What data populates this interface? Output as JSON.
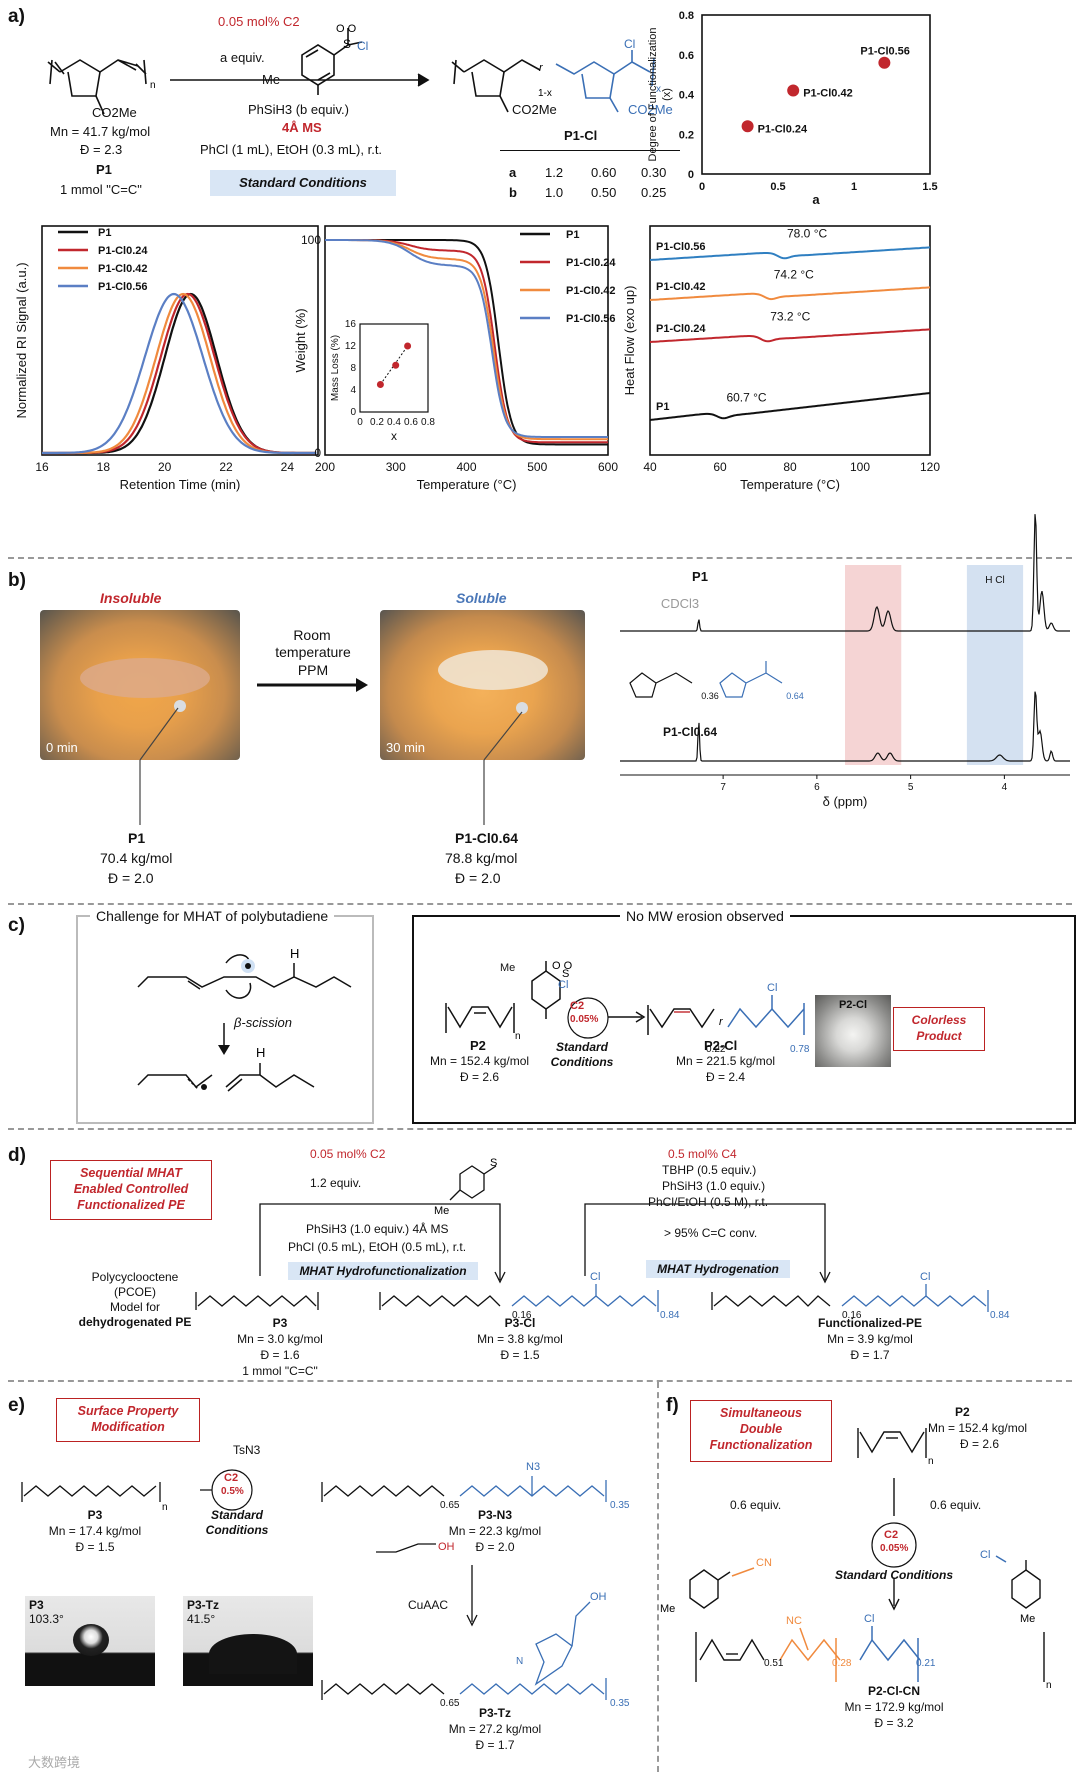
{
  "panel_labels": {
    "a": "a)",
    "b": "b)",
    "c": "c)",
    "d": "d)",
    "e": "e)",
    "f": "f)"
  },
  "panel_a": {
    "scheme": {
      "catalyst_line": "0.05 mol% C2",
      "reagent_equiv": "a equiv.",
      "silane": "PhSiH3 (b equiv.)",
      "ms": "4Å MS",
      "solvent": "PhCl (1 mL), EtOH (0.3 mL), r.t.",
      "standard_conditions": "Standard Conditions",
      "monomer_mn": "Mn = 41.7 kg/mol",
      "monomer_d": "Đ = 2.3",
      "monomer_name": "P1",
      "monomer_amount": "1 mmol  \"C=C\"",
      "product_name": "P1-Cl",
      "me_label": "Me",
      "so2cl_label": "Cl",
      "co2me": "CO2Me",
      "table_rows": [
        [
          "a",
          "1.2",
          "0.60",
          "0.30"
        ],
        [
          "b",
          "1.0",
          "0.50",
          "0.25"
        ]
      ]
    },
    "dof_chart": {
      "chart_data": {
        "type": "scatter",
        "ylabel": "Degree of Functionalization (x)",
        "xlabel": "a",
        "xlim": [
          0,
          1.5
        ],
        "ylim": [
          0,
          0.8
        ],
        "x_ticks": [
          "0",
          "0.5",
          "1",
          "1.5"
        ],
        "y_ticks": [
          "0",
          "0.2",
          "0.4",
          "0.6",
          "0.8"
        ],
        "points": [
          {
            "x": 0.3,
            "y": 0.24,
            "label": "P1-Cl0.24"
          },
          {
            "x": 0.6,
            "y": 0.42,
            "label": "P1-Cl0.42"
          },
          {
            "x": 1.2,
            "y": 0.56,
            "label": "P1-Cl0.56"
          }
        ],
        "color": "#c1272d"
      }
    },
    "gpc_chart": {
      "chart_data": {
        "type": "line",
        "xlabel": "Retention Time (min)",
        "ylabel": "Normalized RI Signal (a.u.)",
        "xlim": [
          16,
          25
        ],
        "x_ticks": [
          "16",
          "18",
          "20",
          "22",
          "24"
        ],
        "series": [
          {
            "name": "P1",
            "color": "#111111",
            "peak": 20.85,
            "width": 1.25
          },
          {
            "name": "P1-Cl0.24",
            "color": "#c1272d",
            "peak": 20.75,
            "width": 1.3
          },
          {
            "name": "P1-Cl0.42",
            "color": "#f08a3e",
            "peak": 20.6,
            "width": 1.3
          },
          {
            "name": "P1-Cl0.56",
            "color": "#5b7fc4",
            "peak": 20.3,
            "width": 1.4
          }
        ]
      }
    },
    "tga_chart": {
      "chart_data": {
        "type": "line",
        "xlabel": "Temperature (°C)",
        "ylabel": "Weight (%)",
        "xlim": [
          200,
          600
        ],
        "ylim": [
          0,
          100
        ],
        "x_ticks": [
          "200",
          "300",
          "400",
          "500",
          "600"
        ],
        "y_ticks": [
          "0",
          "100"
        ],
        "series": [
          {
            "name": "P1",
            "color": "#111111",
            "plateau": 100,
            "step_end": 100,
            "onset": 445,
            "residue": 4
          },
          {
            "name": "P1-Cl0.24",
            "color": "#c1272d",
            "plateau": 100,
            "step_end": 95,
            "onset": 440,
            "residue": 5
          },
          {
            "name": "P1-Cl0.42",
            "color": "#f08a3e",
            "plateau": 100,
            "step_end": 91,
            "onset": 438,
            "residue": 6.5
          },
          {
            "name": "P1-Cl0.56",
            "color": "#5b7fc4",
            "plateau": 100,
            "step_end": 88,
            "onset": 436,
            "residue": 7.5
          }
        ],
        "inset": {
          "xlabel": "x",
          "ylabel": "Mass Loss (%)",
          "xlim": [
            0,
            0.8
          ],
          "ylim": [
            0,
            16
          ],
          "x_ticks": [
            "0",
            "0.2",
            "0.4",
            "0.6",
            "0.8"
          ],
          "y_ticks": [
            "0",
            "4",
            "8",
            "12",
            "16"
          ],
          "points": [
            {
              "x": 0.24,
              "y": 5
            },
            {
              "x": 0.42,
              "y": 8.5
            },
            {
              "x": 0.56,
              "y": 12
            }
          ]
        }
      }
    },
    "dsc_chart": {
      "chart_data": {
        "type": "line",
        "xlabel": "Temperature (°C)",
        "ylabel": "Heat Flow (exo up)",
        "xlim": [
          40,
          120
        ],
        "x_ticks": [
          "40",
          "60",
          "80",
          "100",
          "120"
        ],
        "series": [
          {
            "name": "P1-Cl0.56",
            "color": "#2f7fc1",
            "tg": 78.0,
            "tg_label": "78.0 °C"
          },
          {
            "name": "P1-Cl0.42",
            "color": "#f08a3e",
            "tg": 74.2,
            "tg_label": "74.2 °C"
          },
          {
            "name": "P1-Cl0.24",
            "color": "#c1272d",
            "tg": 73.2,
            "tg_label": "73.2 °C"
          },
          {
            "name": "P1",
            "color": "#111111",
            "tg": 60.7,
            "tg_label": "60.7 °C"
          }
        ]
      }
    }
  },
  "panel_b": {
    "insoluble": "Insoluble",
    "soluble": "Soluble",
    "arrow_text": [
      "Room",
      "temperature",
      "PPM"
    ],
    "time0": "0 min",
    "time30": "30 min",
    "left_name": "P1",
    "left_mn": "70.4 kg/mol",
    "left_d": "Đ = 2.0",
    "right_name": "P1-Cl0.64",
    "right_mn": "78.8 kg/mol",
    "right_d": "Đ = 2.0",
    "nmr": {
      "top_label": "P1",
      "solvent": "CDCl3",
      "bottom_label": "P1-Cl0.64",
      "frac_a": "0.36",
      "frac_b": "0.64",
      "xlabel": "δ (ppm)",
      "x_ticks": [
        "7",
        "6",
        "5",
        "4"
      ],
      "hcl_label": "H  Cl"
    }
  },
  "panel_c": {
    "challenge_title": "Challenge for MHAT of polybutadiene",
    "beta": "β-scission",
    "h_label": "H",
    "no_mw_title": "No MW erosion observed",
    "p2_name": "P2",
    "p2_mn": "Mn = 152.4 kg/mol",
    "p2_d": "Đ = 2.6",
    "c2": "C2",
    "c2_loading": "0.05%",
    "std": [
      "Standard",
      "Conditions"
    ],
    "prod_name": "P2-Cl",
    "prod_mn": "Mn = 221.5 kg/mol",
    "prod_d": "Đ = 2.4",
    "frac1": "0.22",
    "frac2": "0.78",
    "photo_label": "P2-Cl",
    "colorless": [
      "Colorless",
      "Product"
    ]
  },
  "panel_d": {
    "box_title": [
      "Sequential MHAT",
      "Enabled Controlled",
      "Functionalized PE"
    ],
    "left_cat": "0.05 mol% C2",
    "left_equiv": "1.2 equiv.",
    "left_silane": "PhSiH3 (1.0 equiv.) 4Å MS",
    "left_solvent": "PhCl (0.5 mL), EtOH (0.5 mL), r.t.",
    "hydrofunc": "MHAT Hydrofunctionalization",
    "right_cat": "0.5 mol% C4",
    "right_tbhp": "TBHP (0.5 equiv.)",
    "right_silane": "PhSiH3 (1.0 equiv.)",
    "right_solvent": "PhCl/EtOH (0.5 M), r.t.",
    "conv": "> 95% C=C conv.",
    "hydrog": "MHAT Hydrogenation",
    "pcoe": [
      "Polycyclooctene",
      "(PCOE)",
      "Model for",
      "dehydrogenated PE"
    ],
    "p3": {
      "name": "P3",
      "mn": "Mn = 3.0 kg/mol",
      "d": "Đ = 1.6",
      "amt": "1 mmol  \"C=C\""
    },
    "p3cl": {
      "name": "P3-Cl",
      "mn": "Mn = 3.8 kg/mol",
      "d": "Đ = 1.5",
      "f1": "0.16",
      "f2": "0.84"
    },
    "fpe": {
      "name": "Functionalized-PE",
      "mn": "Mn = 3.9 kg/mol",
      "d": "Đ = 1.7",
      "f1": "0.16",
      "f2": "0.84"
    }
  },
  "panel_e": {
    "box_title": [
      "Surface Property",
      "Modification"
    ],
    "reagent": "TsN3",
    "c2": "C2",
    "c2_loading": "0.5%",
    "std": [
      "Standard",
      "Conditions"
    ],
    "p3": {
      "name": "P3",
      "mn": "Mn = 17.4 kg/mol",
      "d": "Đ = 1.5"
    },
    "p3n3": {
      "name": "P3-N3",
      "mn": "Mn = 22.3 kg/mol",
      "d": "Đ = 2.0",
      "f1": "0.65",
      "f2": "0.35"
    },
    "cuaac": "CuAAC",
    "p3tz": {
      "name": "P3-Tz",
      "mn": "Mn = 27.2 kg/mol",
      "d": "Đ = 1.7",
      "f1": "0.65",
      "f2": "0.35"
    },
    "angle1_name": "P3",
    "angle1": "103.3°",
    "angle2_name": "P3-Tz",
    "angle2": "41.5°",
    "watermark": "大数跨境"
  },
  "panel_f": {
    "box_title": [
      "Simultaneous",
      "Double",
      "Functionalization"
    ],
    "p2": {
      "name": "P2",
      "mn": "Mn = 152.4 kg/mol",
      "d": "Đ = 2.6"
    },
    "left_equiv": "0.6 equiv.",
    "right_equiv": "0.6 equiv.",
    "c2": "C2",
    "c2_loading": "0.05%",
    "std": "Standard Conditions",
    "prod": {
      "name": "P2-Cl-CN",
      "mn": "Mn = 172.9 kg/mol",
      "d": "Đ = 3.2",
      "f1": "0.51",
      "f2": "0.28",
      "f3": "0.21"
    }
  }
}
